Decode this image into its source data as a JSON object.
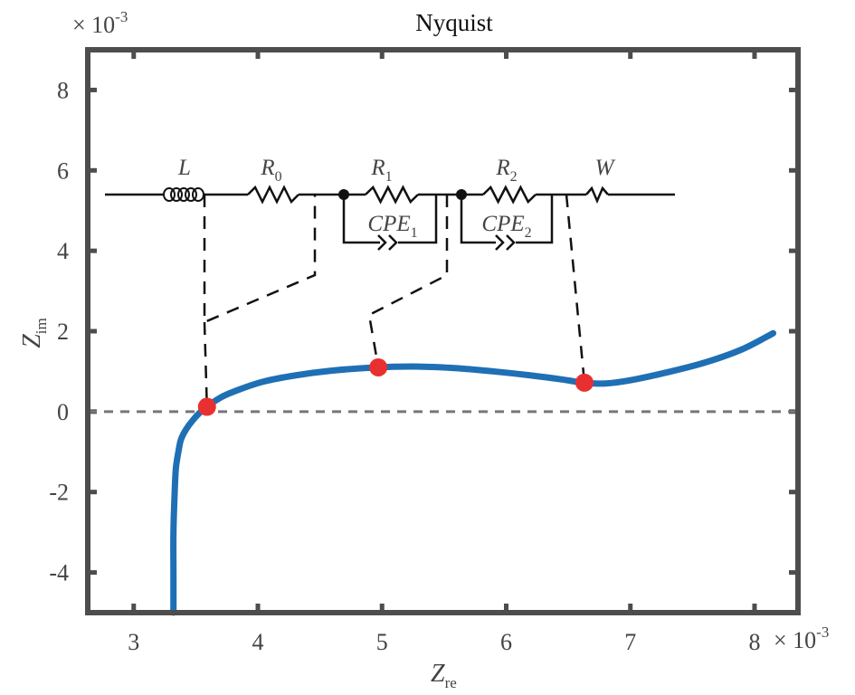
{
  "chart_data": {
    "type": "line",
    "title": "Nyquist",
    "xlabel": {
      "main": "Z",
      "sub": "re"
    },
    "ylabel": {
      "main": "Z",
      "sub": "im"
    },
    "x_multiplier": {
      "base": "× 10",
      "exp": "-3"
    },
    "y_multiplier": {
      "base": "× 10",
      "exp": "-3"
    },
    "xlim": [
      2.63,
      8.35
    ],
    "ylim": [
      -5.0,
      9.0
    ],
    "xticks": [
      3,
      4,
      5,
      6,
      7,
      8
    ],
    "yticks": [
      -4,
      -2,
      0,
      2,
      4,
      6,
      8
    ],
    "xtick_labels": [
      "3",
      "4",
      "5",
      "6",
      "7",
      "8"
    ],
    "ytick_labels": [
      "-4",
      "-2",
      "0",
      "2",
      "4",
      "6",
      "8"
    ],
    "grid": false,
    "zero_line": {
      "y": 0,
      "style": "dashed",
      "color": "#777777"
    },
    "series": [
      {
        "color": "#1f6fb5",
        "x": [
          3.32,
          3.32,
          3.32,
          3.33,
          3.34,
          3.36,
          3.38,
          3.42,
          3.48,
          3.56,
          3.7,
          3.85,
          4.05,
          4.3,
          4.6,
          4.95,
          5.3,
          5.6,
          5.9,
          6.2,
          6.45,
          6.62,
          6.8,
          7.0,
          7.3,
          7.6,
          7.9,
          8.15
        ],
        "y": [
          -5.0,
          -4.0,
          -3.0,
          -2.0,
          -1.4,
          -1.0,
          -0.7,
          -0.45,
          -0.2,
          0.05,
          0.35,
          0.55,
          0.75,
          0.9,
          1.02,
          1.1,
          1.12,
          1.08,
          1.0,
          0.9,
          0.8,
          0.72,
          0.7,
          0.78,
          0.98,
          1.22,
          1.55,
          1.95
        ]
      }
    ],
    "markers": {
      "color": "#e83030",
      "points": [
        {
          "x": 3.59,
          "y": 0.12
        },
        {
          "x": 4.97,
          "y": 1.1
        },
        {
          "x": 6.63,
          "y": 0.72
        }
      ]
    },
    "circuit": {
      "elements": [
        {
          "kind": "inductor",
          "label": "L",
          "sub": ""
        },
        {
          "kind": "resistor",
          "label": "R",
          "sub": "0"
        },
        {
          "kind": "resistor",
          "label": "R",
          "sub": "1"
        },
        {
          "kind": "cpe",
          "label": "CPE",
          "sub": "1"
        },
        {
          "kind": "resistor",
          "label": "R",
          "sub": "2"
        },
        {
          "kind": "cpe",
          "label": "CPE",
          "sub": "2"
        },
        {
          "kind": "warburg",
          "label": "W",
          "sub": ""
        }
      ]
    }
  }
}
